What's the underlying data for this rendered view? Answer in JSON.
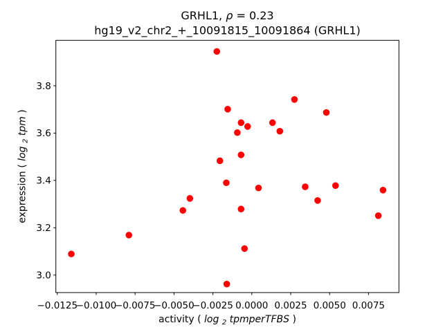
{
  "chart_data": {
    "type": "scatter",
    "title": "GRHL1, ρ = 0.23",
    "subtitle": "hg19_v2_chr2_+_10091815_10091864 (GRHL1)",
    "title_parts": {
      "gene": "GRHL1,",
      "rho_symbol": " ρ",
      "rho_value": " = 0.23"
    },
    "xlabel": "activity (log2tpmperTFBS)",
    "xlabel_parts": {
      "prefix": "activity (",
      "log": "log",
      "sub": "2",
      "math": "tpmperTFBS",
      "suffix": ")"
    },
    "ylabel": "expression (log2tpm)",
    "ylabel_parts": {
      "prefix": "expression (",
      "log": "log",
      "sub": "2",
      "math": "tpm",
      "suffix": ")"
    },
    "grid": false,
    "legend": "none",
    "marker_shape": "circle",
    "marker_color": "#ff0000",
    "axis_color": "#000000",
    "xlim": [
      -0.012593,
      0.009453
    ],
    "ylim": [
      2.926,
      3.992
    ],
    "x_ticks": [
      -0.0125,
      -0.01,
      -0.0075,
      -0.005,
      -0.0025,
      0.0,
      0.0025,
      0.005,
      0.0075
    ],
    "x_tick_labels": [
      "−0.0125",
      "−0.0100",
      "−0.0075",
      "−0.0050",
      "−0.0025",
      "0.0000",
      "0.0025",
      "0.0050",
      "0.0075"
    ],
    "y_ticks": [
      3.0,
      3.2,
      3.4,
      3.6,
      3.8
    ],
    "y_tick_labels": [
      "3.0",
      "3.2",
      "3.4",
      "3.6",
      "3.8"
    ],
    "points": [
      [
        -0.0116,
        3.089
      ],
      [
        -0.0079,
        3.169
      ],
      [
        -0.00443,
        3.273
      ],
      [
        -0.00398,
        3.324
      ],
      [
        -0.00225,
        3.945
      ],
      [
        -0.00205,
        3.483
      ],
      [
        -0.00164,
        3.39
      ],
      [
        -0.00161,
        2.962
      ],
      [
        -0.00155,
        3.701
      ],
      [
        -0.00093,
        3.602
      ],
      [
        -0.00069,
        3.644
      ],
      [
        -0.00069,
        3.508
      ],
      [
        -0.00069,
        3.279
      ],
      [
        -0.00047,
        3.112
      ],
      [
        -0.00027,
        3.628
      ],
      [
        0.00043,
        3.368
      ],
      [
        0.00133,
        3.644
      ],
      [
        0.0018,
        3.608
      ],
      [
        0.00274,
        3.742
      ],
      [
        0.00343,
        3.373
      ],
      [
        0.00423,
        3.315
      ],
      [
        0.00479,
        3.687
      ],
      [
        0.00538,
        3.378
      ],
      [
        0.00813,
        3.251
      ],
      [
        0.00843,
        3.359
      ]
    ]
  }
}
